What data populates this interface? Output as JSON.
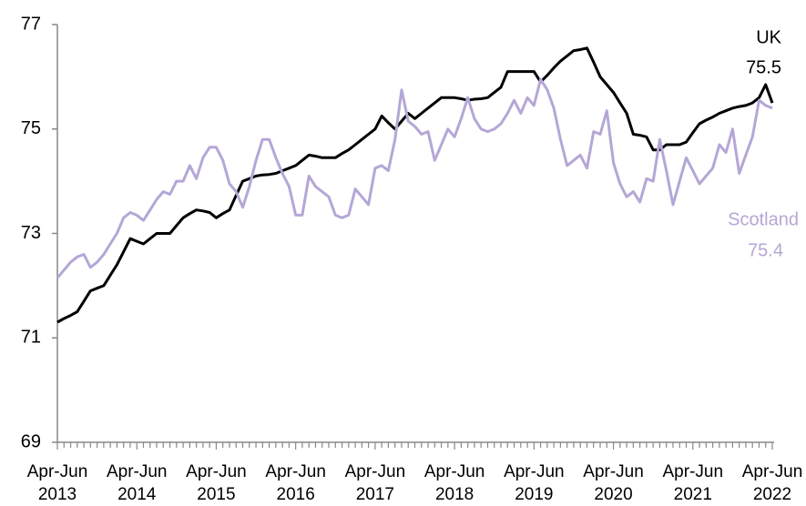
{
  "chart_data": {
    "type": "line",
    "categories": [
      "Apr-Jun 2013",
      null,
      null,
      null,
      null,
      null,
      null,
      null,
      null,
      null,
      null,
      null,
      "Apr-Jun 2014",
      null,
      null,
      null,
      null,
      null,
      null,
      null,
      null,
      null,
      null,
      null,
      "Apr-Jun 2015",
      null,
      null,
      null,
      null,
      null,
      null,
      null,
      null,
      null,
      null,
      null,
      "Apr-Jun 2016",
      null,
      null,
      null,
      null,
      null,
      null,
      null,
      null,
      null,
      null,
      null,
      "Apr-Jun 2017",
      null,
      null,
      null,
      null,
      null,
      null,
      null,
      null,
      null,
      null,
      null,
      "Apr-Jun 2018",
      null,
      null,
      null,
      null,
      null,
      null,
      null,
      null,
      null,
      null,
      null,
      "Apr-Jun 2019",
      null,
      null,
      null,
      null,
      null,
      null,
      null,
      null,
      null,
      null,
      null,
      "Apr-Jun 2020",
      null,
      null,
      null,
      null,
      null,
      null,
      null,
      null,
      null,
      null,
      null,
      "Apr-Jun 2021",
      null,
      null,
      null,
      null,
      null,
      null,
      null,
      null,
      null,
      null,
      null,
      "Apr-Jun 2022"
    ],
    "series": [
      {
        "name": "UK",
        "color": "#000000",
        "values": [
          71.3,
          71.37,
          71.43,
          71.5,
          71.7,
          71.9,
          71.95,
          72.0,
          72.2,
          72.4,
          72.65,
          72.9,
          72.85,
          72.8,
          72.9,
          73.0,
          73.0,
          73.0,
          73.15,
          73.3,
          73.38,
          73.45,
          73.43,
          73.4,
          73.3,
          73.38,
          73.45,
          73.73,
          74.0,
          74.05,
          74.1,
          74.12,
          74.13,
          74.15,
          74.2,
          74.25,
          74.3,
          74.4,
          74.5,
          74.48,
          74.45,
          74.45,
          74.45,
          74.53,
          74.6,
          74.7,
          74.8,
          74.9,
          75.0,
          75.25,
          75.12,
          75.0,
          75.15,
          75.3,
          75.2,
          75.3,
          75.4,
          75.5,
          75.6,
          75.6,
          75.6,
          75.58,
          75.55,
          75.57,
          75.58,
          75.6,
          75.7,
          75.8,
          76.1,
          76.1,
          76.1,
          76.1,
          76.1,
          75.9,
          76.03,
          76.17,
          76.3,
          76.4,
          76.5,
          76.52,
          76.55,
          76.28,
          76.0,
          75.85,
          75.7,
          75.5,
          75.3,
          74.9,
          74.88,
          74.85,
          74.6,
          74.6,
          74.7,
          74.7,
          74.7,
          74.75,
          74.93,
          75.1,
          75.17,
          75.23,
          75.3,
          75.35,
          75.4,
          75.43,
          75.45,
          75.5,
          75.6,
          75.85,
          75.5
        ]
      },
      {
        "name": "Scotland",
        "color": "#b4a7d6",
        "values": [
          72.15,
          72.3,
          72.45,
          72.55,
          72.6,
          72.35,
          72.45,
          72.6,
          72.8,
          73.0,
          73.3,
          73.4,
          73.35,
          73.25,
          73.45,
          73.65,
          73.8,
          73.75,
          74.0,
          74.0,
          74.3,
          74.05,
          74.45,
          74.65,
          74.65,
          74.4,
          73.95,
          73.8,
          73.5,
          73.9,
          74.4,
          74.8,
          74.8,
          74.45,
          74.15,
          73.9,
          73.35,
          73.35,
          74.1,
          73.9,
          73.8,
          73.7,
          73.35,
          73.3,
          73.35,
          73.85,
          73.7,
          73.55,
          74.25,
          74.3,
          74.2,
          74.8,
          75.75,
          75.15,
          75.05,
          74.9,
          74.95,
          74.4,
          74.7,
          75.0,
          74.85,
          75.2,
          75.6,
          75.2,
          75.0,
          74.95,
          75.0,
          75.1,
          75.3,
          75.55,
          75.3,
          75.6,
          75.45,
          75.95,
          75.75,
          75.4,
          74.8,
          74.3,
          74.4,
          74.5,
          74.25,
          74.95,
          74.9,
          75.35,
          74.35,
          73.95,
          73.7,
          73.8,
          73.6,
          74.05,
          74.0,
          74.8,
          74.2,
          73.55,
          74.0,
          74.45,
          74.2,
          73.95,
          74.1,
          74.25,
          74.7,
          74.55,
          75.0,
          74.15,
          74.5,
          74.85,
          75.55,
          75.45,
          75.4
        ]
      }
    ],
    "ylim": [
      69,
      77
    ],
    "yticks": [
      69,
      71,
      73,
      75,
      77
    ],
    "grid": false
  }
}
